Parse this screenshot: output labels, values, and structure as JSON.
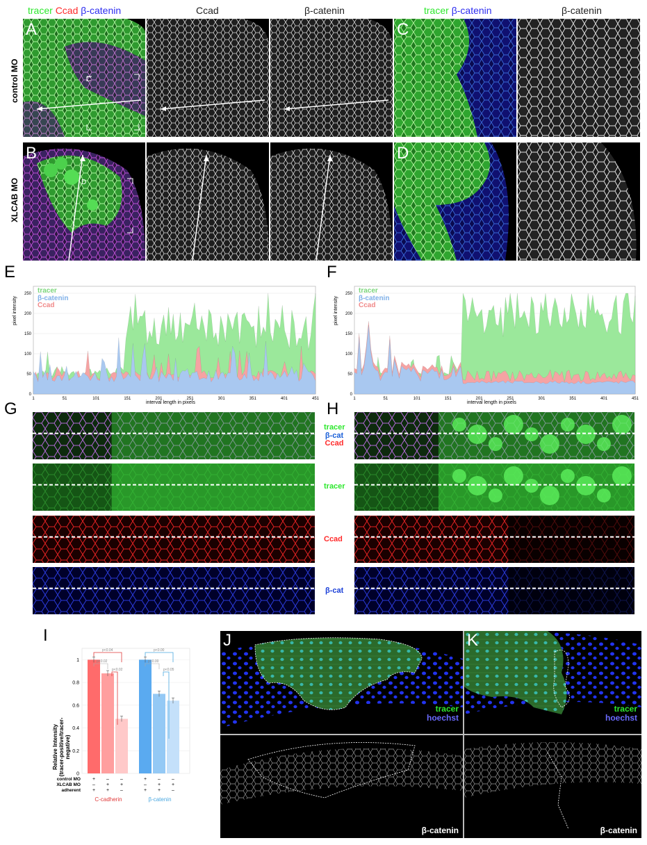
{
  "panel_labels": {
    "A": "A",
    "B": "B",
    "C": "C",
    "D": "D",
    "E": "E",
    "F": "F",
    "G": "G",
    "H": "H",
    "I": "I",
    "J": "J",
    "K": "K"
  },
  "top_headers": {
    "merge_tracer": "tracer",
    "merge_ccad": "Ccad",
    "merge_bcat": "β-catenin",
    "ccad": "Ccad",
    "bcat": "β-catenin",
    "c_tracer": "tracer",
    "c_bcat": "β-catenin",
    "c_bcat_gray": "β-catenin"
  },
  "row_labels": {
    "control": "control MO",
    "xlcab": "XLCAB MO"
  },
  "inset_markers": {
    "c": "C",
    "d": "D"
  },
  "colors": {
    "tracer": "#2ee82e",
    "ccad": "#ff2a2a",
    "bcat": "#2d2df0",
    "plot_tracer": "#9be89b",
    "plot_bcat": "#a9c8f0",
    "plot_ccad": "#f5a3a3"
  },
  "plot_e": {
    "legend": [
      "tracer",
      "β-catenin",
      "Ccad"
    ],
    "ylabel": "pixel intensity",
    "xlabel": "interval length in pixels",
    "yticks": [
      "0",
      "50",
      "100",
      "150",
      "200",
      "250"
    ],
    "xticks": [
      "1",
      "51",
      "101",
      "151",
      "201",
      "251",
      "301",
      "351",
      "401",
      "451"
    ]
  },
  "plot_f": {
    "legend": [
      "tracer",
      "β-catenin",
      "Ccad"
    ],
    "ylabel": "pixel intensity",
    "xlabel": "interval length in pixels",
    "yticks": [
      "0",
      "50",
      "100",
      "150",
      "200",
      "250"
    ],
    "xticks": [
      "1",
      "51",
      "101",
      "151",
      "201",
      "251",
      "301",
      "351",
      "401",
      "451"
    ]
  },
  "strip_labels": {
    "tracer": "tracer",
    "bcat": "β-cat",
    "ccad": "Ccad"
  },
  "chart_data": {
    "type": "bar",
    "ylabel": "Relative Intensity\n(tracer-positive/tracer-negative)",
    "ylabel_line1": "Relative Intensity",
    "ylabel_line2": "(tracer-positive/tracer-negative)",
    "ylim": [
      0,
      1.1
    ],
    "yticks": [
      "0",
      "0.2",
      "0.4",
      "0.6",
      "0.8",
      "1"
    ],
    "row_headers": [
      "control MO",
      "XLCAB MO",
      "adherent"
    ],
    "groups": [
      {
        "name": "C-cadherin",
        "color": "#ff6b6b",
        "values": [
          1.0,
          0.88,
          0.48
        ],
        "marks": [
          [
            "+",
            "–",
            "–"
          ],
          [
            "–",
            "+",
            "+"
          ],
          [
            "+",
            "+",
            "–"
          ]
        ],
        "pvalues": [
          "p<0.04",
          "p<0.02",
          "p<0.02"
        ]
      },
      {
        "name": "β-catenin",
        "color": "#5aaaf0",
        "values": [
          1.0,
          0.7,
          0.64
        ],
        "marks": [
          [
            "+",
            "–",
            "–"
          ],
          [
            "–",
            "+",
            "+"
          ],
          [
            "+",
            "+",
            "–"
          ]
        ],
        "pvalues": [
          "p<0.00",
          "p<0.00",
          "p<0.05"
        ]
      }
    ]
  },
  "jk_labels": {
    "tracer": "tracer",
    "hoechst": "hoechst",
    "bcat": "β-catenin"
  }
}
